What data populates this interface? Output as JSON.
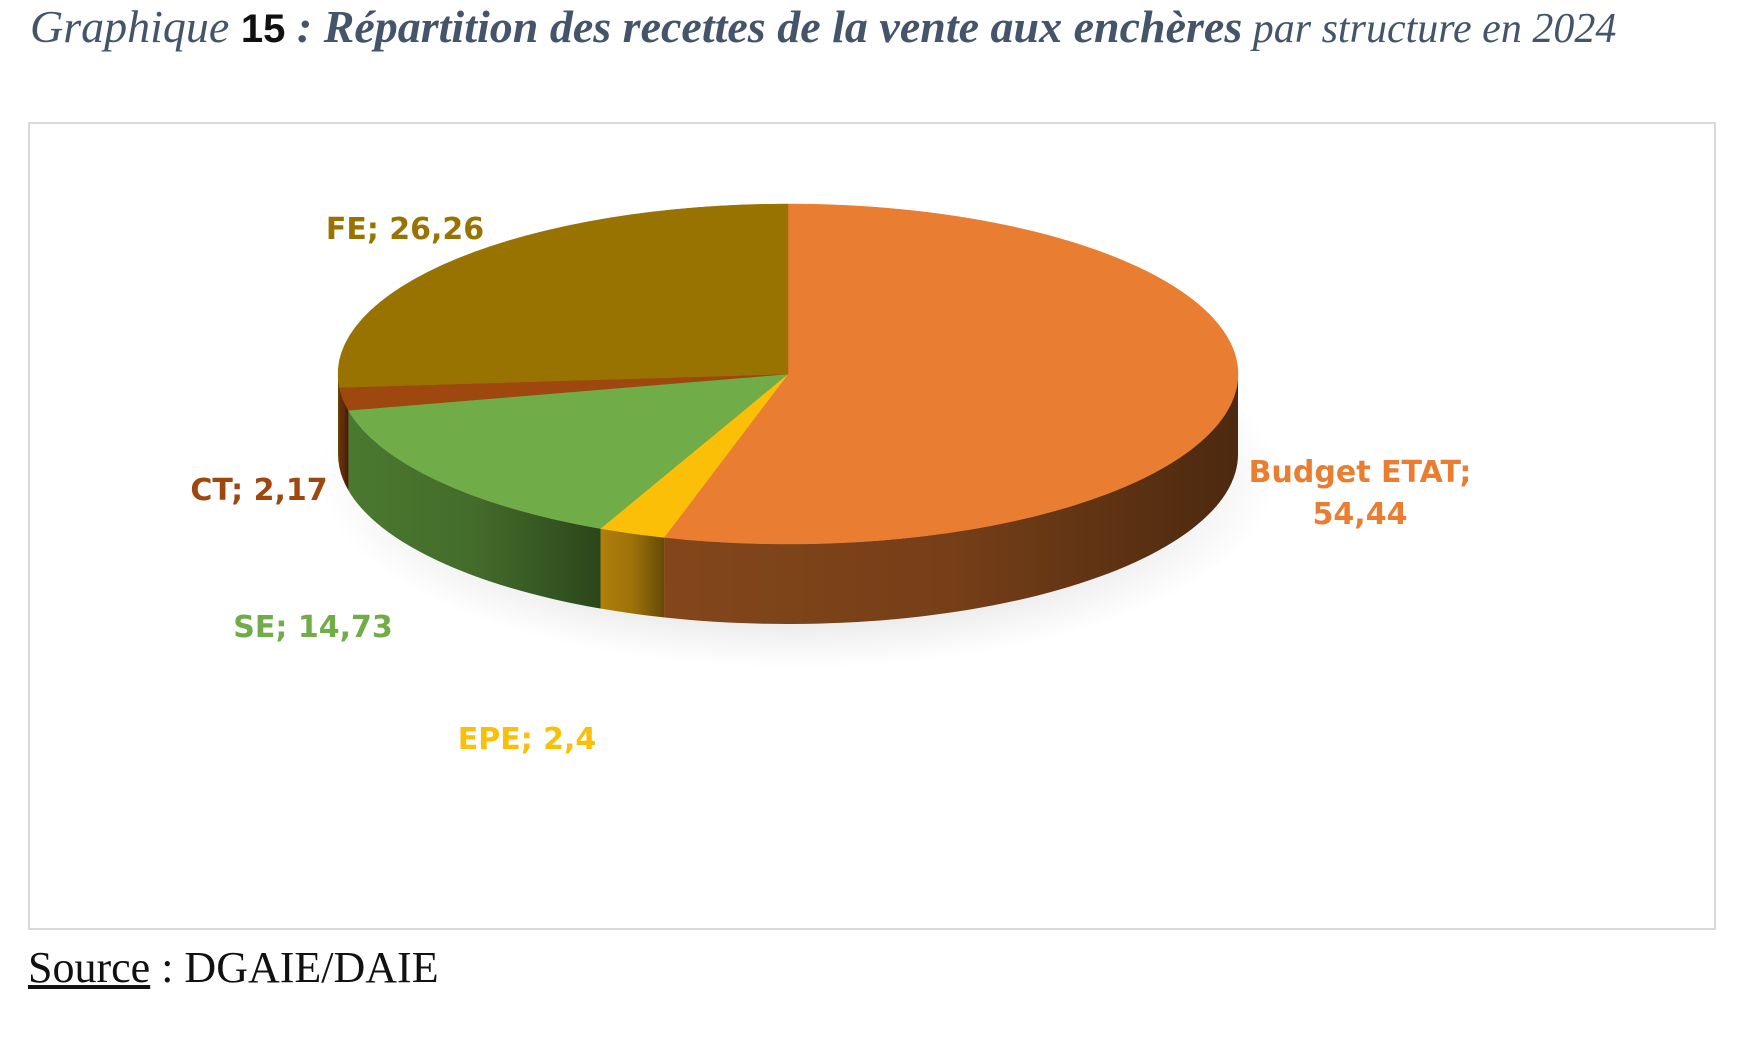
{
  "title": {
    "prefix": "Graphique ",
    "number": "15",
    "main": " : Répartition des recettes de la vente aux enchères",
    "suffix": " par structure en 2024"
  },
  "source": {
    "label": "Source",
    "sep": " : ",
    "value": "DGAIE/DAIE"
  },
  "chart_data": {
    "type": "pie",
    "title": "",
    "slices": [
      {
        "name": "Budget ETAT",
        "value": 54.44,
        "label_lines": [
          "Budget ETAT;",
          "54,44"
        ],
        "color": "#e97d31",
        "side_color": "#8a4a1c",
        "label_color": "#e97d31"
      },
      {
        "name": "EPE",
        "value": 2.4,
        "label_lines": [
          "EPE; 2,4"
        ],
        "color": "#fbbf07",
        "side_color": "#b8860b",
        "label_color": "#fbbf07"
      },
      {
        "name": "SE",
        "value": 14.73,
        "label_lines": [
          "SE; 14,73"
        ],
        "color": "#70ac47",
        "side_color": "#4f7f32",
        "label_color": "#70ac47"
      },
      {
        "name": "CT",
        "value": 2.17,
        "label_lines": [
          "CT; 2,17"
        ],
        "color": "#9e470e",
        "side_color": "#6e320a",
        "label_color": "#9e470e"
      },
      {
        "name": "FE",
        "value": 26.26,
        "label_lines": [
          "FE; 26,26"
        ],
        "color": "#997301",
        "side_color": "#6b5100",
        "label_color": "#997301"
      }
    ],
    "start_angle_deg": 0,
    "direction": "clockwise",
    "view": "3d",
    "legend": "none"
  }
}
